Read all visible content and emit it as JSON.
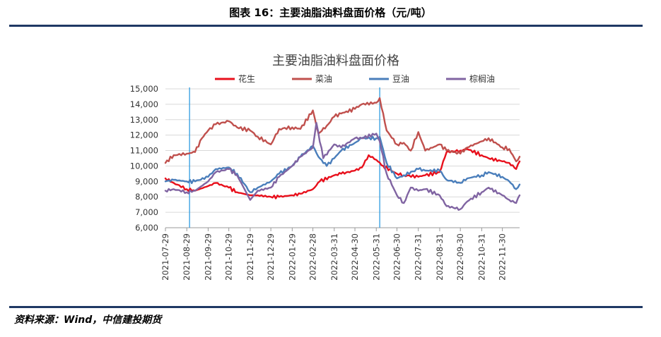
{
  "figure_title": "图表 16：主要油脂油料盘面价格（元/吨）",
  "source": "资料来源：Wind，中信建投期货",
  "chart_data": {
    "type": "line",
    "title": "主要油脂油料盘面价格",
    "xlabel": "",
    "ylabel": "",
    "ylim": [
      6000,
      15000
    ],
    "yticks": [
      "6,000",
      "7,000",
      "8,000",
      "9,000",
      "10,000",
      "11,000",
      "12,000",
      "13,000",
      "14,000",
      "15,000"
    ],
    "xticks": [
      "2021-07-29",
      "2021-08-29",
      "2021-09-29",
      "2021-10-29",
      "2021-11-29",
      "2021-12-29",
      "2022-01-29",
      "2022-02-28",
      "2022-03-31",
      "2022-04-30",
      "2022-05-31",
      "2022-06-30",
      "2022-07-31",
      "2022-08-31",
      "2022-09-30",
      "2022-10-31",
      "2022-11-30"
    ],
    "x_range": [
      "2021-07-29",
      "2022-12-25"
    ],
    "grid": "horizontal",
    "legend_position": "top",
    "vertical_markers": [
      "2021-09-02",
      "2022-06-05"
    ],
    "vertical_marker_color": "#2e9be0",
    "series": [
      {
        "name": "花生",
        "color": "#e8101c",
        "x": [
          "2021-07-29",
          "2021-08-10",
          "2021-08-29",
          "2021-09-10",
          "2021-09-29",
          "2021-10-10",
          "2021-10-29",
          "2021-11-10",
          "2021-11-29",
          "2021-12-10",
          "2021-12-29",
          "2022-01-10",
          "2022-01-29",
          "2022-02-10",
          "2022-02-28",
          "2022-03-10",
          "2022-03-31",
          "2022-04-10",
          "2022-04-30",
          "2022-05-10",
          "2022-05-20",
          "2022-05-31",
          "2022-06-10",
          "2022-06-30",
          "2022-07-10",
          "2022-07-31",
          "2022-08-10",
          "2022-08-31",
          "2022-09-10",
          "2022-09-30",
          "2022-10-10",
          "2022-10-31",
          "2022-11-10",
          "2022-11-30",
          "2022-12-10",
          "2022-12-20",
          "2022-12-25"
        ],
        "y": [
          9200,
          8900,
          8500,
          8400,
          8700,
          8900,
          8600,
          8300,
          8100,
          8100,
          8000,
          8000,
          8100,
          8200,
          8500,
          9000,
          9400,
          9500,
          9700,
          9900,
          10700,
          10400,
          10000,
          9500,
          9400,
          9300,
          9400,
          9600,
          10900,
          11000,
          11100,
          10700,
          10500,
          10300,
          10200,
          9800,
          10300
        ]
      },
      {
        "name": "菜油",
        "color": "#c0504d",
        "x": [
          "2021-07-29",
          "2021-08-10",
          "2021-08-29",
          "2021-09-10",
          "2021-09-20",
          "2021-09-29",
          "2021-10-10",
          "2021-10-29",
          "2021-11-10",
          "2021-11-29",
          "2021-12-10",
          "2021-12-29",
          "2022-01-10",
          "2022-01-29",
          "2022-02-10",
          "2022-02-28",
          "2022-03-08",
          "2022-03-20",
          "2022-03-31",
          "2022-04-10",
          "2022-04-30",
          "2022-05-10",
          "2022-05-31",
          "2022-06-05",
          "2022-06-15",
          "2022-06-30",
          "2022-07-10",
          "2022-07-20",
          "2022-07-31",
          "2022-08-10",
          "2022-08-31",
          "2022-09-10",
          "2022-09-30",
          "2022-10-10",
          "2022-10-31",
          "2022-11-10",
          "2022-11-30",
          "2022-12-10",
          "2022-12-20",
          "2022-12-25"
        ],
        "y": [
          10200,
          10700,
          10800,
          10900,
          11800,
          12300,
          12700,
          12900,
          12500,
          12300,
          11900,
          11400,
          12400,
          12500,
          12400,
          13600,
          12100,
          12600,
          13200,
          13400,
          13700,
          14000,
          14100,
          14400,
          12300,
          11400,
          11500,
          11000,
          12200,
          11000,
          11400,
          11000,
          10800,
          11200,
          11600,
          11800,
          11200,
          11100,
          10300,
          10600
        ]
      },
      {
        "name": "豆油",
        "color": "#4a7ebb",
        "x": [
          "2021-07-29",
          "2021-08-10",
          "2021-08-29",
          "2021-09-10",
          "2021-09-29",
          "2021-10-10",
          "2021-10-29",
          "2021-11-10",
          "2021-11-29",
          "2021-12-10",
          "2021-12-29",
          "2022-01-10",
          "2022-01-29",
          "2022-02-10",
          "2022-02-28",
          "2022-03-08",
          "2022-03-20",
          "2022-03-31",
          "2022-04-10",
          "2022-04-30",
          "2022-05-10",
          "2022-05-31",
          "2022-06-05",
          "2022-06-15",
          "2022-06-30",
          "2022-07-10",
          "2022-07-31",
          "2022-08-10",
          "2022-08-31",
          "2022-09-10",
          "2022-09-30",
          "2022-10-10",
          "2022-10-31",
          "2022-11-10",
          "2022-11-30",
          "2022-12-10",
          "2022-12-20",
          "2022-12-25"
        ],
        "y": [
          9000,
          9100,
          9000,
          9000,
          9300,
          9800,
          9900,
          9500,
          8300,
          8600,
          9000,
          9500,
          10000,
          10600,
          11300,
          10600,
          10000,
          10500,
          11000,
          11500,
          11800,
          11800,
          11900,
          10200,
          9200,
          9400,
          9800,
          9700,
          9700,
          9100,
          8900,
          9200,
          9400,
          9600,
          9300,
          9000,
          8500,
          8800
        ]
      },
      {
        "name": "棕榈油",
        "color": "#8064a2",
        "x": [
          "2021-07-29",
          "2021-08-10",
          "2021-08-29",
          "2021-09-10",
          "2021-09-29",
          "2021-10-10",
          "2021-10-29",
          "2021-11-10",
          "2021-11-29",
          "2021-12-10",
          "2021-12-29",
          "2022-01-10",
          "2022-01-29",
          "2022-02-10",
          "2022-02-28",
          "2022-03-05",
          "2022-03-15",
          "2022-03-31",
          "2022-04-10",
          "2022-04-30",
          "2022-05-10",
          "2022-05-31",
          "2022-06-05",
          "2022-06-15",
          "2022-06-30",
          "2022-07-10",
          "2022-07-20",
          "2022-07-31",
          "2022-08-10",
          "2022-08-31",
          "2022-09-10",
          "2022-09-30",
          "2022-10-10",
          "2022-10-31",
          "2022-11-10",
          "2022-11-30",
          "2022-12-10",
          "2022-12-20",
          "2022-12-25"
        ],
        "y": [
          8400,
          8500,
          8300,
          8400,
          9000,
          9600,
          9800,
          9400,
          7800,
          8400,
          8600,
          9300,
          10000,
          10600,
          11200,
          12800,
          10500,
          11400,
          11200,
          11800,
          11800,
          12100,
          11600,
          9500,
          8100,
          7600,
          8600,
          8400,
          8500,
          8100,
          7400,
          7200,
          7700,
          8300,
          8600,
          8100,
          7800,
          7600,
          8100
        ]
      }
    ],
    "legend": [
      {
        "label": "花生",
        "color": "#e8101c"
      },
      {
        "label": "菜油",
        "color": "#c0504d"
      },
      {
        "label": "豆油",
        "color": "#4a7ebb"
      },
      {
        "label": "棕榈油",
        "color": "#8064a2"
      }
    ]
  }
}
